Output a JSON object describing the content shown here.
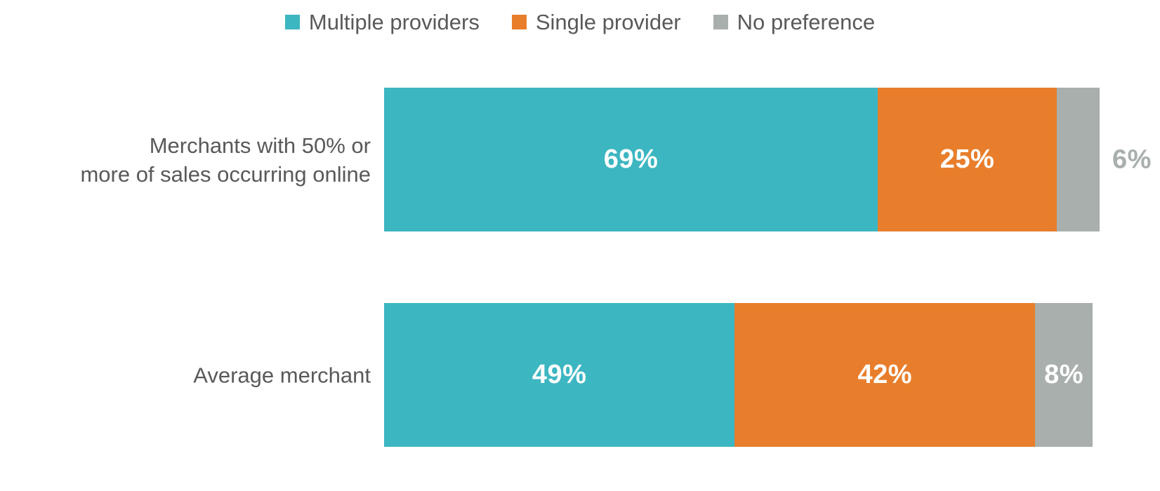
{
  "colors": {
    "teal": "#3CB6C1",
    "orange": "#E87E2C",
    "gray": "#A8AFAC",
    "label_text": "#58595B",
    "value_label_inside": "#FFFFFF",
    "value_label_outside": "#A8AFAC",
    "background": "#FFFFFF"
  },
  "legend": {
    "items": [
      {
        "label": "Multiple providers",
        "color": "#3CB6C1"
      },
      {
        "label": "Single provider",
        "color": "#E87E2C"
      },
      {
        "label": "No preference",
        "color": "#A8AFAC"
      }
    ]
  },
  "chart_data": {
    "type": "bar",
    "orientation": "horizontal",
    "stacked": true,
    "grid": false,
    "legend_position": "top",
    "xlim": [
      0,
      100
    ],
    "categories": [
      "Merchants with 50% or more of sales occurring online",
      "Average merchant"
    ],
    "category_lines": [
      [
        "Merchants with 50% or",
        "more of sales occurring online"
      ],
      [
        "Average merchant"
      ]
    ],
    "series": [
      {
        "name": "Multiple providers",
        "color": "#3CB6C1",
        "values": [
          69,
          49
        ]
      },
      {
        "name": "Single provider",
        "color": "#E87E2C",
        "values": [
          25,
          42
        ]
      },
      {
        "name": "No preference",
        "color": "#A8AFAC",
        "values": [
          6,
          8
        ]
      }
    ],
    "value_labels": [
      [
        "69%",
        "25%",
        "6%"
      ],
      [
        "49%",
        "42%",
        "8%"
      ]
    ],
    "label_placement": [
      [
        "inside",
        "inside",
        "outside"
      ],
      [
        "inside",
        "inside",
        "inside"
      ]
    ]
  }
}
